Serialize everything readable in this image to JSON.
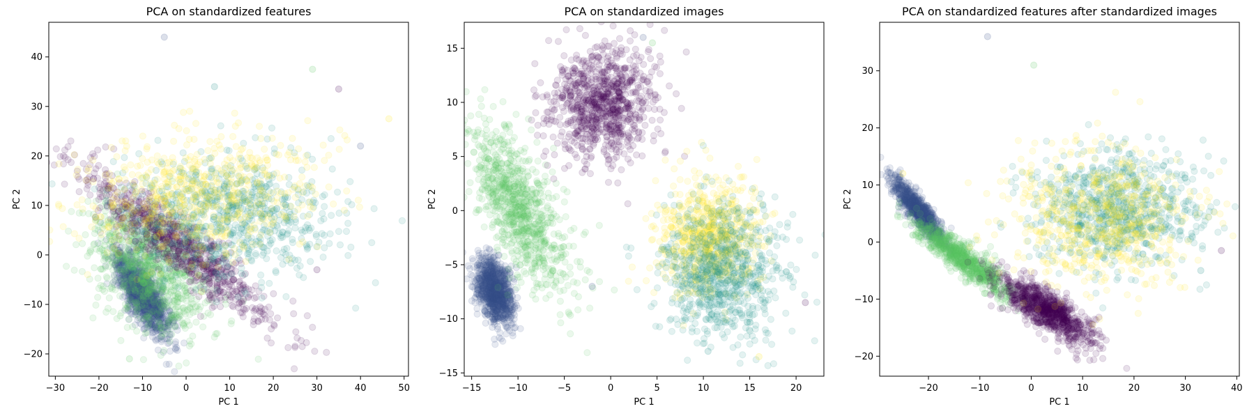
{
  "chart_data": [
    {
      "type": "scatter",
      "title": "PCA on standardized features",
      "xlabel": "PC 1",
      "ylabel": "PC 2",
      "xlim": [
        -31.5,
        51
      ],
      "ylim": [
        -24.5,
        47
      ],
      "xticks": [
        -30,
        -20,
        -10,
        0,
        10,
        20,
        30,
        40,
        50
      ],
      "yticks": [
        -20,
        -10,
        0,
        10,
        20,
        30,
        40
      ],
      "marker_alpha": 0.12,
      "clusters": [
        {
          "color": "#3b528b",
          "n": 1100,
          "center": [
            -10,
            -8
          ],
          "spread": [
            5,
            1.8
          ],
          "angle": -0.95
        },
        {
          "color": "#5ec962",
          "n": 900,
          "center": [
            -8,
            -3
          ],
          "spread": [
            8,
            5
          ],
          "angle": -0.75
        },
        {
          "color": "#440154",
          "n": 850,
          "center": [
            -2,
            2
          ],
          "spread": [
            14,
            2.5
          ],
          "angle": -0.62
        },
        {
          "color": "#21918c",
          "n": 750,
          "center": [
            10,
            8
          ],
          "spread": [
            12,
            6
          ],
          "angle": 0.0
        },
        {
          "color": "#fde725",
          "n": 650,
          "center": [
            2,
            12
          ],
          "spread": [
            14,
            6
          ],
          "angle": 0.1
        }
      ],
      "outliers": [
        [
          -5,
          44
        ],
        [
          29,
          37.5
        ],
        [
          35,
          33.5
        ],
        [
          6.5,
          34
        ],
        [
          46.5,
          27.5
        ],
        [
          40,
          22
        ],
        [
          -13,
          -21
        ],
        [
          30,
          -3
        ]
      ]
    },
    {
      "type": "scatter",
      "title": "PCA on standardized images",
      "xlabel": "PC 1",
      "ylabel": "PC 2",
      "xlim": [
        -15.8,
        23
      ],
      "ylim": [
        -15.3,
        17.4
      ],
      "xticks": [
        -15,
        -10,
        -5,
        0,
        5,
        10,
        15,
        20
      ],
      "yticks": [
        -15,
        -10,
        -5,
        0,
        5,
        10,
        15
      ],
      "marker_alpha": 0.12,
      "clusters": [
        {
          "color": "#3b528b",
          "n": 1000,
          "center": [
            -12.5,
            -7.5
          ],
          "spread": [
            0.9,
            1.6
          ],
          "angle": 0.35
        },
        {
          "color": "#5ec962",
          "n": 900,
          "center": [
            -10,
            0.5
          ],
          "spread": [
            1.8,
            4.5
          ],
          "angle": 0.55
        },
        {
          "color": "#440154",
          "n": 900,
          "center": [
            -1,
            10
          ],
          "spread": [
            2.8,
            2.6
          ],
          "angle": 0.0
        },
        {
          "color": "#fde725",
          "n": 700,
          "center": [
            10.5,
            -2.5
          ],
          "spread": [
            2.6,
            2.6
          ],
          "angle": 0.0
        },
        {
          "color": "#21918c",
          "n": 800,
          "center": [
            12,
            -5.5
          ],
          "spread": [
            3.2,
            3.2
          ],
          "angle": 0.0
        }
      ],
      "outliers": [
        [
          3.5,
          16
        ],
        [
          4.5,
          15.5
        ],
        [
          21,
          -8.5
        ],
        [
          16,
          -13.5
        ],
        [
          10.5,
          -13
        ],
        [
          -2,
          -7
        ]
      ]
    },
    {
      "type": "scatter",
      "title": "PCA on standardized features after standardized images",
      "xlabel": "PC 1",
      "ylabel": "PC 2",
      "xlim": [
        -29.5,
        40.5
      ],
      "ylim": [
        -23.5,
        38.5
      ],
      "xticks": [
        -20,
        -10,
        0,
        10,
        20,
        30,
        40
      ],
      "yticks": [
        -20,
        -10,
        0,
        10,
        20,
        30
      ],
      "marker_alpha": 0.12,
      "clusters": [
        {
          "color": "#3b528b",
          "n": 900,
          "center": [
            -22,
            5.5
          ],
          "spread": [
            3.5,
            0.9
          ],
          "angle": -0.85
        },
        {
          "color": "#5ec962",
          "n": 800,
          "center": [
            -13,
            -3
          ],
          "spread": [
            6,
            1.2
          ],
          "angle": -0.6
        },
        {
          "color": "#440154",
          "n": 900,
          "center": [
            3,
            -12
          ],
          "spread": [
            5,
            1.6
          ],
          "angle": -0.55
        },
        {
          "color": "#21918c",
          "n": 800,
          "center": [
            17,
            6
          ],
          "spread": [
            8,
            5
          ],
          "angle": 0.0
        },
        {
          "color": "#fde725",
          "n": 650,
          "center": [
            14,
            4
          ],
          "spread": [
            9,
            6
          ],
          "angle": 0.0
        }
      ],
      "outliers": [
        [
          -8.5,
          36
        ],
        [
          0.5,
          31
        ],
        [
          37,
          -1.5
        ],
        [
          33,
          -5
        ],
        [
          -25,
          12
        ]
      ]
    }
  ]
}
